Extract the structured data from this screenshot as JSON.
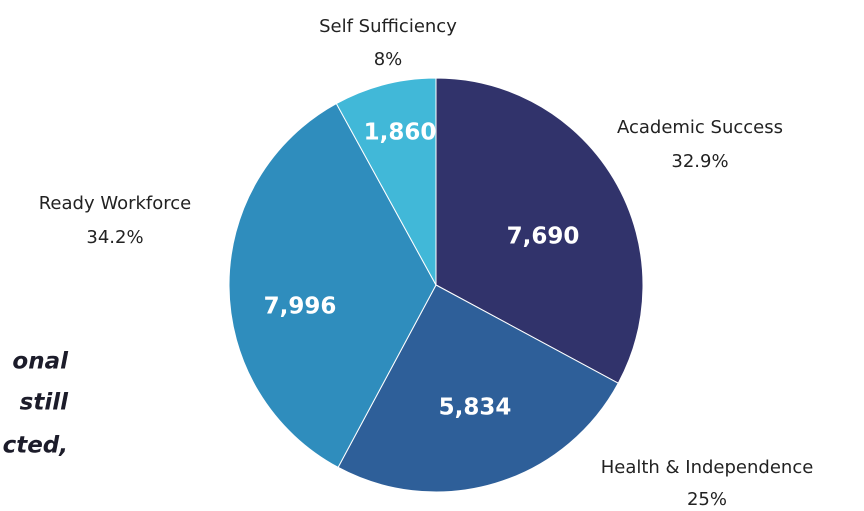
{
  "chart_data": {
    "type": "pie",
    "categories": [
      "Academic Success",
      "Health & Independence",
      "Ready Workforce",
      "Self Sufficiency"
    ],
    "values": [
      32.9,
      25,
      34.2,
      8
    ],
    "value_labels": [
      "32.9%",
      "25%",
      "34.2%",
      "8%"
    ],
    "count_labels": [
      "7,690",
      "5,834",
      "7,996",
      "1,860"
    ],
    "colors": [
      "#31336b",
      "#2e5f99",
      "#2f8dbd",
      "#41b8d8"
    ],
    "annotations": [
      "onal",
      "still",
      "cted,"
    ]
  }
}
